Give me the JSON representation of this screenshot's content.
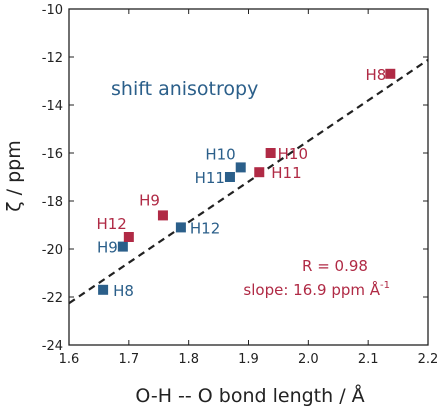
{
  "chart_data": {
    "type": "scatter",
    "xlabel": "O-H -- O bond length / Å",
    "ylabel": "ζ / ppm",
    "xlim": [
      1.6,
      2.2
    ],
    "ylim": [
      -24,
      -10
    ],
    "xticks": [
      "1.6",
      "1.7",
      "1.8",
      "1.9",
      "2.0",
      "2.1",
      "2.2"
    ],
    "yticks": [
      "-24",
      "-22",
      "-20",
      "-18",
      "-16",
      "-14",
      "-12",
      "-10"
    ],
    "grid": false,
    "annotation_series": "shift anisotropy",
    "series": [
      {
        "color": "#2b5f8a",
        "points": [
          {
            "label": "H8",
            "x": 1.657,
            "y": -21.7
          },
          {
            "label": "H9",
            "x": 1.69,
            "y": -19.9
          },
          {
            "label": "H12",
            "x": 1.787,
            "y": -19.1
          },
          {
            "label": "H11",
            "x": 1.869,
            "y": -17.0
          },
          {
            "label": "H10",
            "x": 1.887,
            "y": -16.6
          }
        ]
      },
      {
        "color": "#b02a45",
        "points": [
          {
            "label": "H12",
            "x": 1.7,
            "y": -19.5
          },
          {
            "label": "H9",
            "x": 1.757,
            "y": -18.6
          },
          {
            "label": "H11",
            "x": 1.918,
            "y": -16.8
          },
          {
            "label": "H10",
            "x": 1.937,
            "y": -16.0
          },
          {
            "label": "H8",
            "x": 2.137,
            "y": -12.7
          }
        ]
      }
    ],
    "fit_line": {
      "slope": 16.9,
      "intercept": -49.3,
      "style": "dashed",
      "color": "#222222"
    },
    "stats": {
      "r_text": "R = 0.98",
      "slope_text": "slope: 16.9 ppm Å",
      "slope_unit_sup": "-1",
      "color": "#b02a45"
    }
  }
}
